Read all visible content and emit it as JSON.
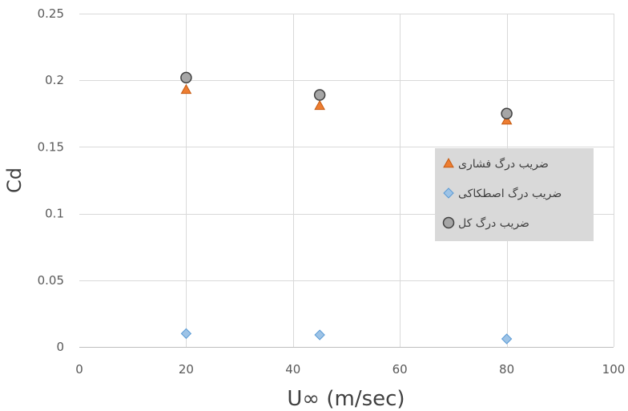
{
  "chart_data": {
    "type": "scatter",
    "title": "",
    "xlabel": "U∞ (m/sec)",
    "ylabel": "Cd",
    "xlim": [
      0,
      100
    ],
    "ylim": [
      0,
      0.25
    ],
    "x_ticks": [
      "0",
      "20",
      "40",
      "60",
      "80",
      "100"
    ],
    "y_ticks": [
      "0",
      "0.05",
      "0.1",
      "0.15",
      "0.2",
      "0.25"
    ],
    "x_tick_values": [
      0,
      20,
      40,
      60,
      80,
      100
    ],
    "y_tick_values": [
      0,
      0.05,
      0.1,
      0.15,
      0.2,
      0.25
    ],
    "grid": true,
    "legend_position": "right",
    "series": [
      {
        "name": "ضریب درگ فشاری",
        "marker": "triangle",
        "color": "#ED7D31",
        "points": [
          {
            "x": 20,
            "y": 0.193
          },
          {
            "x": 45,
            "y": 0.181
          },
          {
            "x": 80,
            "y": 0.17
          }
        ]
      },
      {
        "name": "ضریب درگ اصطکاکی",
        "marker": "diamond",
        "color": "#9DC3E6",
        "points": [
          {
            "x": 20,
            "y": 0.01
          },
          {
            "x": 45,
            "y": 0.009
          },
          {
            "x": 80,
            "y": 0.006
          }
        ]
      },
      {
        "name": "ضریب درگ کل",
        "marker": "circle",
        "color": "#A6A6A6",
        "points": [
          {
            "x": 20,
            "y": 0.202
          },
          {
            "x": 45,
            "y": 0.189
          },
          {
            "x": 80,
            "y": 0.175
          }
        ]
      }
    ]
  }
}
